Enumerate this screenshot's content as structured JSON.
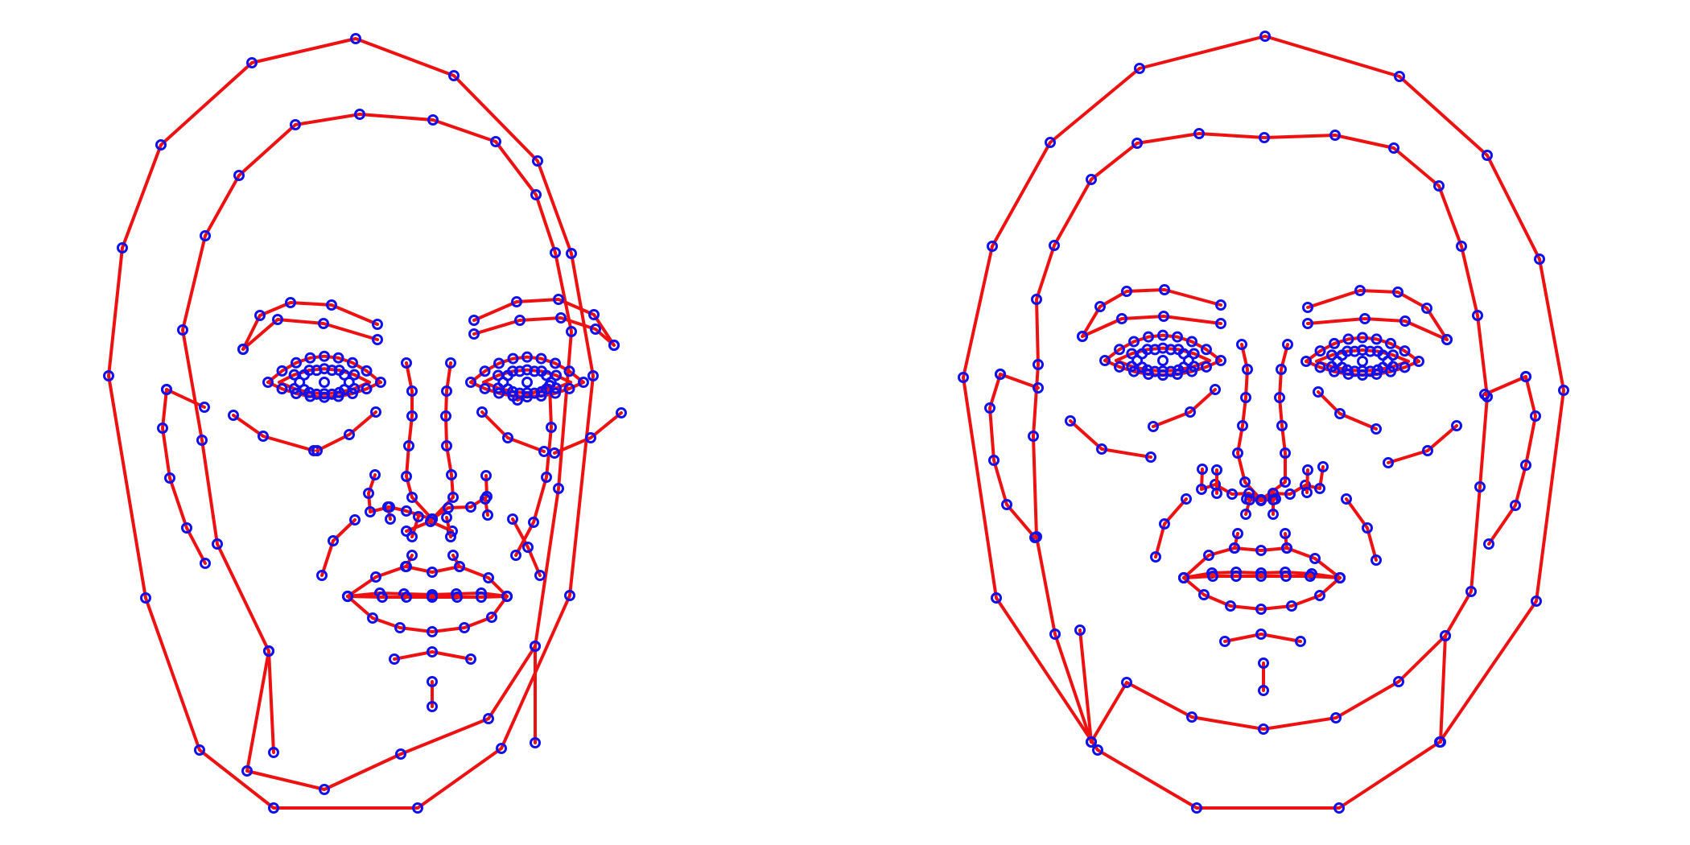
{
  "colors": {
    "background": "#ffffff",
    "edge": "#ee1111",
    "landmark": "#1111ee"
  },
  "panels": [
    {
      "name": "face-mesh-left"
    },
    {
      "name": "face-mesh-right"
    }
  ]
}
